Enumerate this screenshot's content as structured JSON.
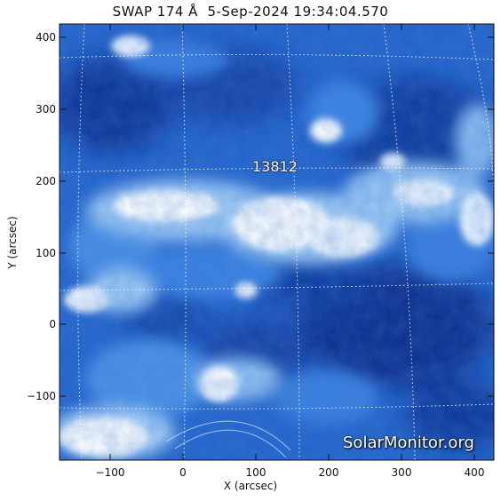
{
  "header": {
    "title": "SWAP 174 Å  5-Sep-2024 19:34:04.570"
  },
  "axes": {
    "x_label": "X (arcsec)",
    "y_label": "Y (arcsec)",
    "x_ticks": [
      "−100",
      "0",
      "100",
      "200",
      "300",
      "400"
    ],
    "y_ticks": [
      "400",
      "300",
      "200",
      "100",
      "0",
      "−100"
    ]
  },
  "image": {
    "region_label": "13812",
    "watermark": "SolarMonitor.org",
    "colors": {
      "dark": "#0c3290",
      "mid": "#2a6fd6",
      "light": "#8fc0f2",
      "bright": "#ffffff",
      "grid": "#ffffff"
    }
  }
}
